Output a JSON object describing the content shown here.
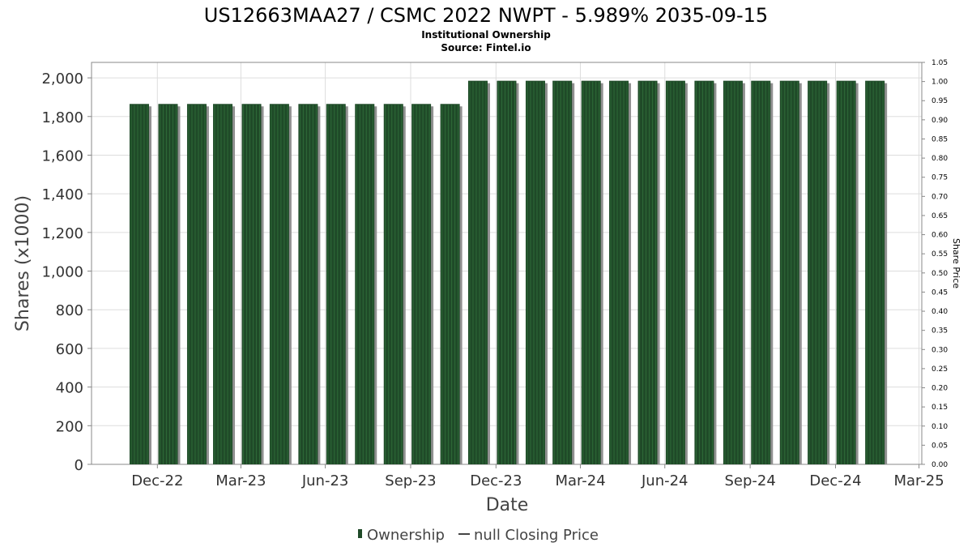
{
  "title": "US12663MAA27 / CSMC 2022 NWPT - 5.989% 2035-09-15",
  "subtitle_1": "Institutional Ownership",
  "subtitle_2": "Source: Fintel.io",
  "colors": {
    "bar": "#1f4a28",
    "bar_stripe": "#2e6a38",
    "bar_shadow": "#909090",
    "grid": "#dddddd",
    "frame": "#888888"
  },
  "chart_data": {
    "type": "bar",
    "xlabel": "Date",
    "ylabel": "Shares (x1000)",
    "ylabel_right": "Share Price",
    "ylim": [
      0,
      2080
    ],
    "ylim_right": [
      0,
      1.05
    ],
    "yticks": [
      0,
      200,
      400,
      600,
      800,
      1000,
      1200,
      1400,
      1600,
      1800,
      2000
    ],
    "ytick_labels": [
      "0",
      "200",
      "400",
      "600",
      "800",
      "1,000",
      "1,200",
      "1,400",
      "1,600",
      "1,800",
      "2,000"
    ],
    "yticks_right": [
      "0.00",
      "0.05",
      "0.10",
      "0.15",
      "0.20",
      "0.25",
      "0.30",
      "0.35",
      "0.40",
      "0.45",
      "0.50",
      "0.55",
      "0.60",
      "0.65",
      "0.70",
      "0.75",
      "0.80",
      "0.85",
      "0.90",
      "0.95",
      "1.00",
      "1.05"
    ],
    "xlim": [
      "2022-10-21",
      "2025-04-03"
    ],
    "xticks": [
      {
        "date": "2022-12-31",
        "label": "Dec-22"
      },
      {
        "date": "2023-03-31",
        "label": "Mar-23"
      },
      {
        "date": "2023-06-30",
        "label": "Jun-23"
      },
      {
        "date": "2023-09-30",
        "label": "Sep-23"
      },
      {
        "date": "2023-12-31",
        "label": "Dec-23"
      },
      {
        "date": "2024-03-31",
        "label": "Mar-24"
      },
      {
        "date": "2024-06-30",
        "label": "Jun-24"
      },
      {
        "date": "2024-09-30",
        "label": "Sep-24"
      },
      {
        "date": "2024-12-31",
        "label": "Dec-24"
      },
      {
        "date": "2025-03-31",
        "label": "Mar-25"
      }
    ],
    "series": [
      {
        "name": "Ownership",
        "x": [
          "2022-12-01",
          "2023-01-01",
          "2023-02-01",
          "2023-03-01",
          "2023-04-01",
          "2023-05-01",
          "2023-06-01",
          "2023-07-01",
          "2023-08-01",
          "2023-09-01",
          "2023-10-01",
          "2023-11-01",
          "2023-12-01",
          "2024-01-01",
          "2024-02-01",
          "2024-03-01",
          "2024-04-01",
          "2024-05-01",
          "2024-06-01",
          "2024-07-01",
          "2024-08-01",
          "2024-09-01",
          "2024-10-01",
          "2024-11-01",
          "2024-12-01",
          "2025-01-01",
          "2025-02-01"
        ],
        "values": [
          1865,
          1865,
          1865,
          1865,
          1865,
          1865,
          1865,
          1865,
          1865,
          1865,
          1865,
          1865,
          1985,
          1985,
          1985,
          1985,
          1985,
          1985,
          1985,
          1985,
          1985,
          1985,
          1985,
          1985,
          1985,
          1985,
          1985
        ]
      },
      {
        "name": "null Closing Price",
        "x": [],
        "values": []
      }
    ],
    "grid": true,
    "legend_position": "bottom-center"
  }
}
